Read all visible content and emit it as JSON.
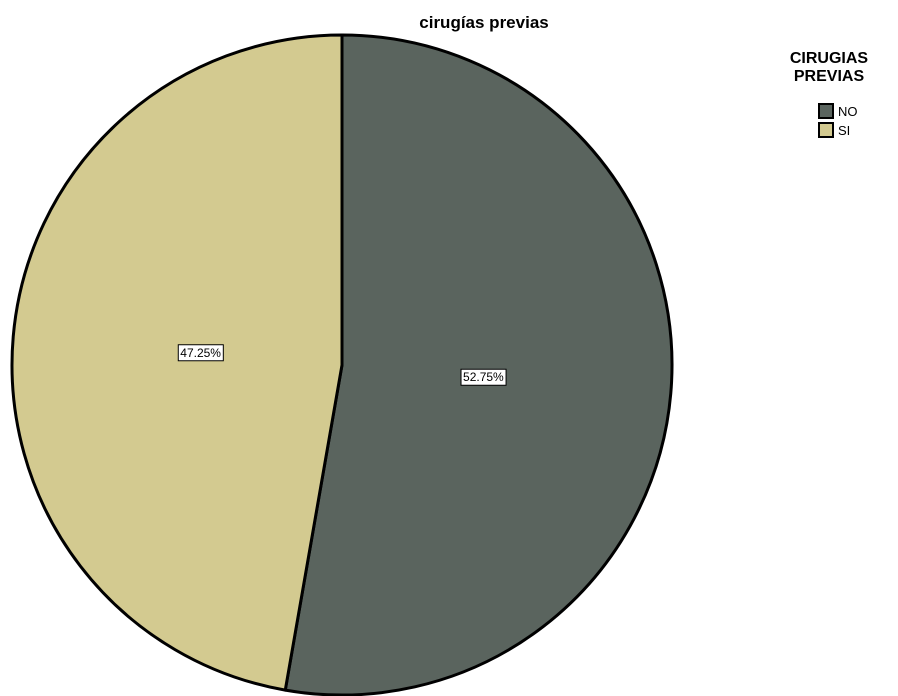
{
  "chart_data": {
    "type": "pie",
    "title": "cirugías previas",
    "legend_title_lines": [
      "CIRUGIAS",
      "PREVIAS"
    ],
    "legend_position": "top-right",
    "categories": [
      "NO",
      "SI"
    ],
    "values": [
      52.75,
      47.25
    ],
    "value_labels": [
      "52.75%",
      "47.25%"
    ],
    "colors": [
      "#5a645e",
      "#d3ca90"
    ],
    "start_angle_deg": 0,
    "direction": "clockwise",
    "slice_border_color": "#000000"
  }
}
